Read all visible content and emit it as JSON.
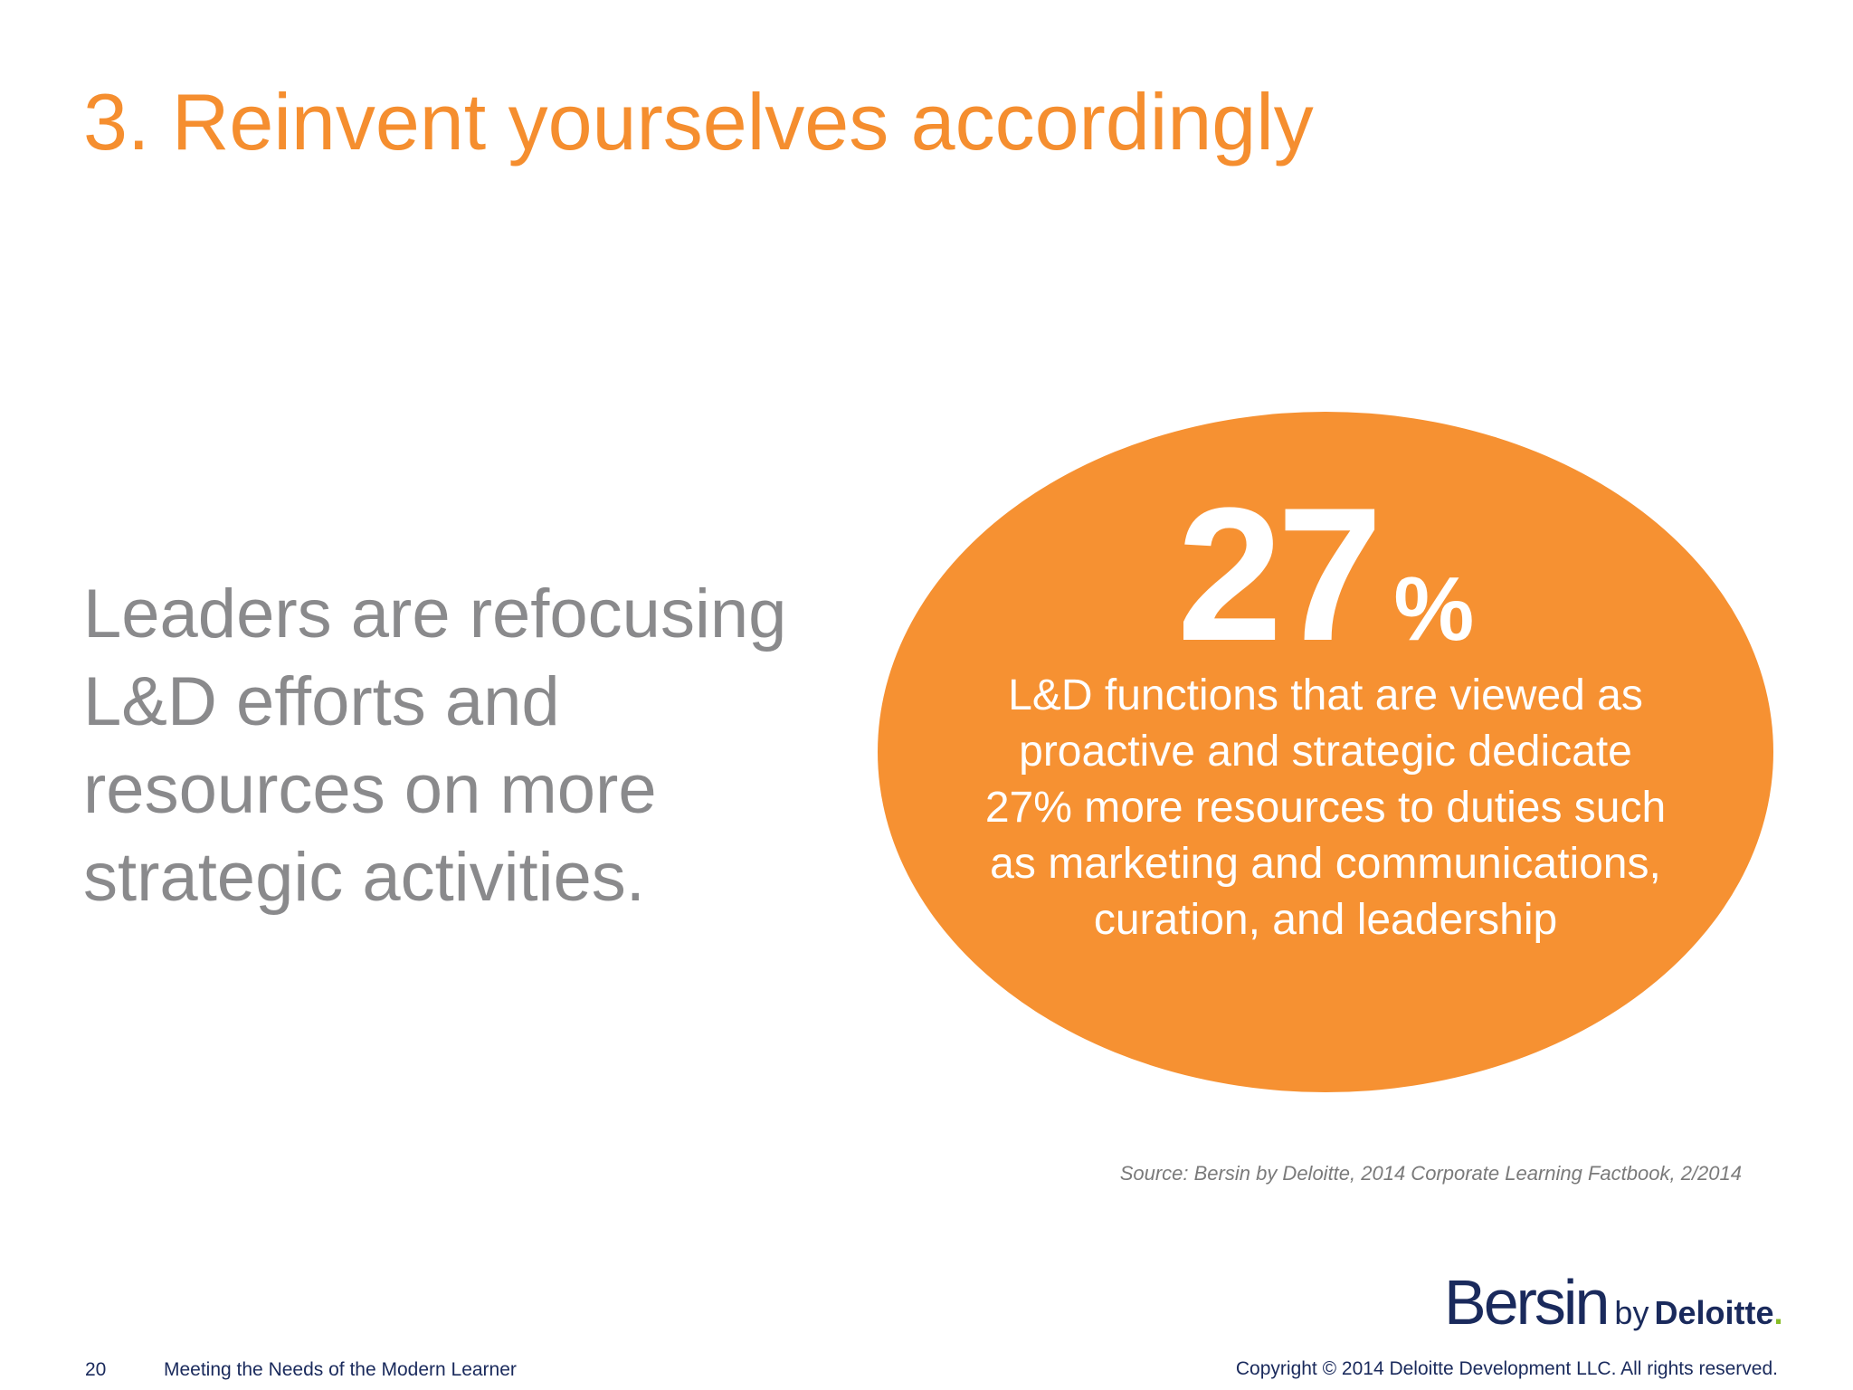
{
  "slide": {
    "title": "3. Reinvent yourselves accordingly",
    "lead_text": "Leaders are refocusing L&D efforts and resources on more strategic activities.",
    "stat": {
      "value": "27",
      "unit": "%",
      "description": "L&D functions that are viewed as proactive and strategic dedicate 27% more resources to duties such as marketing and communications, curation, and leadership"
    },
    "source": "Source: Bersin by Deloitte, 2014 Corporate Learning Factbook, 2/2014"
  },
  "logo": {
    "brand": "Bersin",
    "by": "by",
    "company": "Deloitte",
    "dot": "."
  },
  "footer": {
    "page_number": "20",
    "title": "Meeting the Needs of the Modern Learner",
    "copyright": "Copyright © 2014 Deloitte Development LLC. All rights reserved."
  },
  "colors": {
    "accent_orange": "#f58e2f",
    "ellipse_orange": "#f69132",
    "body_gray": "#8a8a8c",
    "source_gray": "#7a7a7a",
    "navy": "#1a2a5c",
    "deloitte_green": "#86bc25"
  }
}
